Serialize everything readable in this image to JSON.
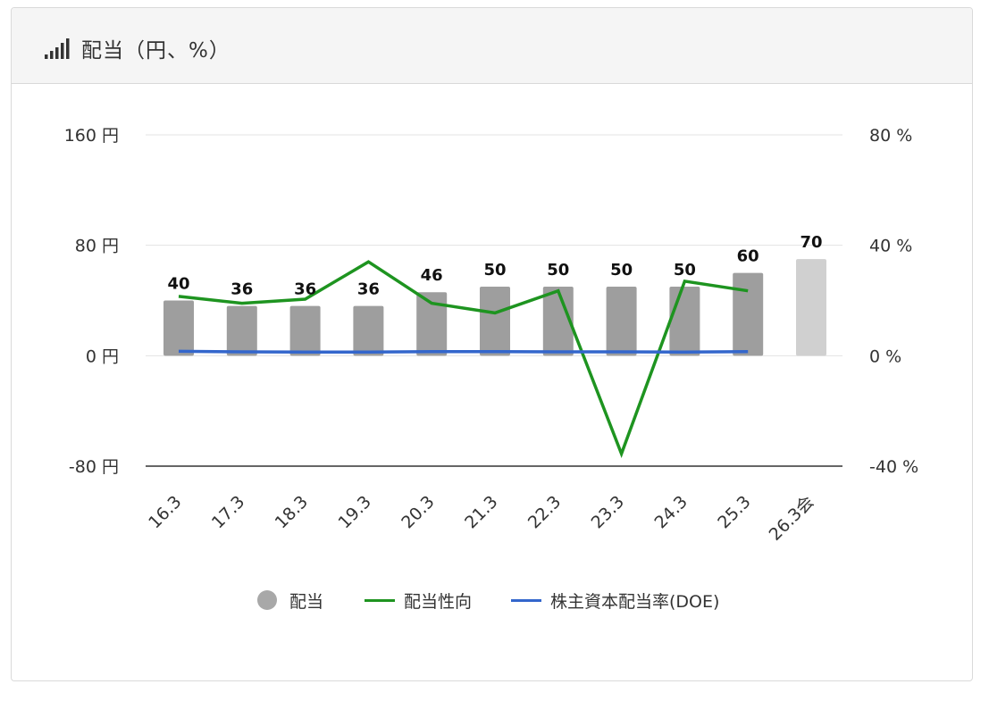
{
  "header": {
    "title": "配当（円、%）",
    "icon": "signal-bars-icon"
  },
  "chart_data": {
    "type": "bar",
    "categories": [
      "16.3",
      "17.3",
      "18.3",
      "19.3",
      "20.3",
      "21.3",
      "22.3",
      "23.3",
      "24.3",
      "25.3",
      "26.3会"
    ],
    "series": [
      {
        "name": "配当",
        "type": "bar",
        "axis": "left",
        "color": "#9e9e9e",
        "forecast_color": "#d0d0d0",
        "values": [
          40,
          36,
          36,
          36,
          46,
          50,
          50,
          50,
          50,
          60,
          70
        ],
        "labels": [
          "40",
          "36",
          "36",
          "36",
          "46",
          "50",
          "50",
          "50",
          "50",
          "60",
          "70"
        ]
      },
      {
        "name": "配当性向",
        "type": "line",
        "axis": "right",
        "color": "#1e9420",
        "values": [
          21.5,
          19.0,
          20.5,
          34.0,
          19.0,
          15.5,
          23.5,
          -35.5,
          27.0,
          23.5,
          null
        ]
      },
      {
        "name": "株主資本配当率(DOE)",
        "type": "line",
        "axis": "right",
        "color": "#3366cc",
        "values": [
          1.6,
          1.4,
          1.3,
          1.3,
          1.5,
          1.5,
          1.4,
          1.4,
          1.3,
          1.5,
          null
        ]
      }
    ],
    "left_axis": {
      "min": -80,
      "max": 160,
      "ticks": [
        "160 円",
        "80 円",
        "0 円",
        "-80 円"
      ],
      "tick_values": [
        160,
        80,
        0,
        -80
      ]
    },
    "right_axis": {
      "min": -40,
      "max": 80,
      "ticks": [
        "80 %",
        "40 %",
        "0 %",
        "-40 %"
      ],
      "tick_values": [
        80,
        40,
        0,
        -40
      ]
    },
    "legend_position": "bottom",
    "grid": true
  }
}
